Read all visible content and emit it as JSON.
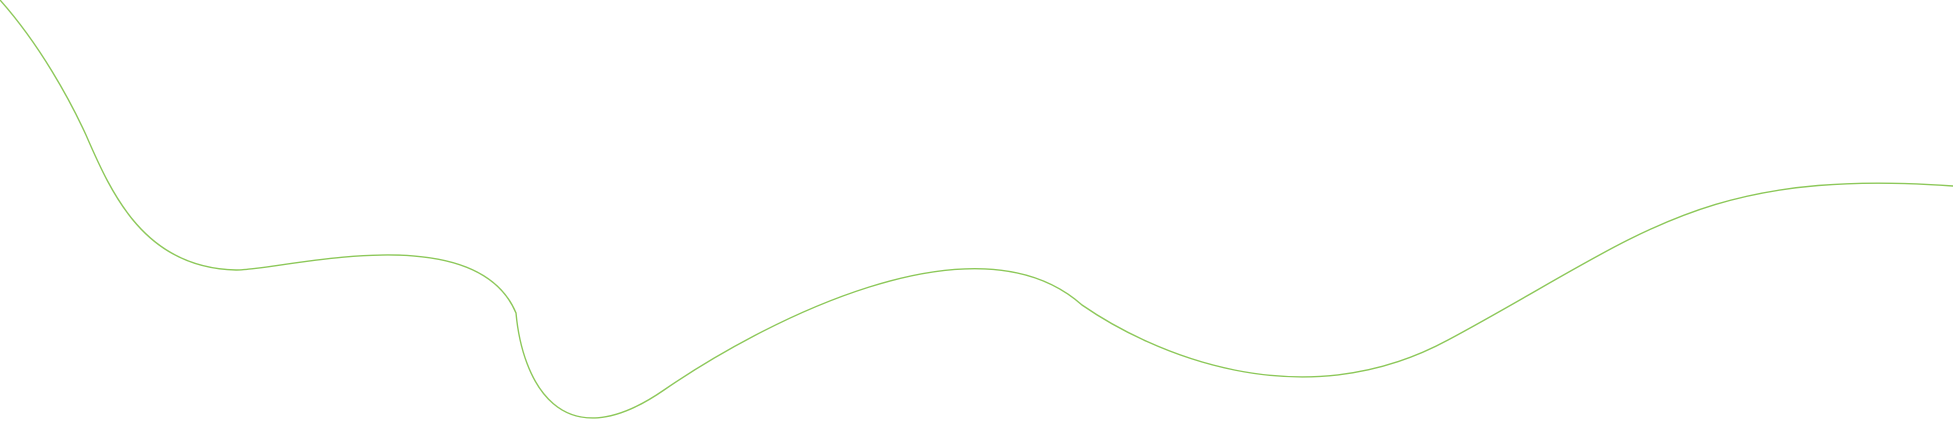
{
  "decoration": {
    "icon": "wavy-line-icon",
    "stroke_color": "#8dc85a",
    "background_color": "#ffffff"
  }
}
